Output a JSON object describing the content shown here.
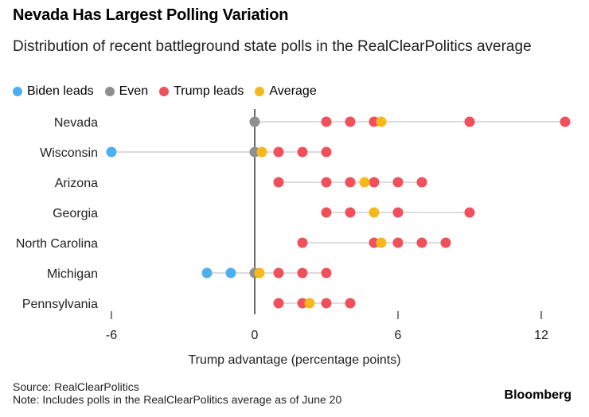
{
  "title": "Nevada Has Largest Polling Variation",
  "subtitle": "Distribution of recent battleground state polls in the RealClearPolitics average",
  "legend": [
    {
      "label": "Biden leads",
      "color": "#4db0ee"
    },
    {
      "label": "Even",
      "color": "#8f8f8f"
    },
    {
      "label": "Trump leads",
      "color": "#f0505c"
    },
    {
      "label": "Average",
      "color": "#f6b81c"
    }
  ],
  "source": "Source: RealClearPolitics",
  "note": "Note: Includes polls in the RealClearPolitics average as of June 20",
  "brand": "Bloomberg",
  "chart_data": {
    "type": "scatter",
    "xlabel": "Trump advantage (percentage points)",
    "xlim": [
      -6,
      13
    ],
    "xticks": [
      -6,
      0,
      6,
      12
    ],
    "xtick_labels": [
      "-6",
      "0",
      "6",
      "12"
    ],
    "colors": {
      "biden": "#4db0ee",
      "even": "#8f8f8f",
      "trump": "#f0505c",
      "average": "#f6b81c",
      "range": "#dcdcdc"
    },
    "states": [
      {
        "name": "Nevada",
        "polls": [
          0,
          3,
          4,
          5,
          9,
          13
        ],
        "average": 5.3
      },
      {
        "name": "Wisconsin",
        "polls": [
          -6,
          0,
          1,
          2,
          3
        ],
        "average": 0.3
      },
      {
        "name": "Arizona",
        "polls": [
          1,
          3,
          4,
          5,
          6,
          7
        ],
        "average": 4.6
      },
      {
        "name": "Georgia",
        "polls": [
          3,
          4,
          6,
          9
        ],
        "average": 5.0
      },
      {
        "name": "North Carolina",
        "polls": [
          2,
          5,
          6,
          7,
          8
        ],
        "average": 5.3
      },
      {
        "name": "Michigan",
        "polls": [
          -2,
          -1,
          0,
          1,
          2,
          3
        ],
        "average": 0.2
      },
      {
        "name": "Pennsylvania",
        "polls": [
          1,
          2,
          3,
          4
        ],
        "average": 2.3
      }
    ]
  }
}
